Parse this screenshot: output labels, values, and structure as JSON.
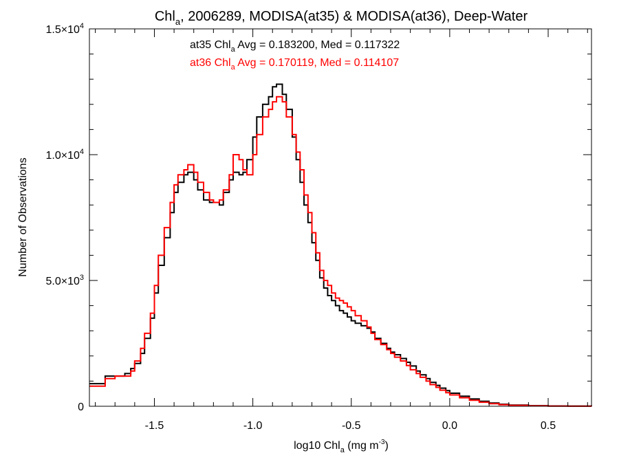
{
  "title_main": "Chl",
  "title_sub": "a",
  "title_rest": ", 2006289, MODISA(at35) & MODISA(at36), Deep-Water",
  "annotations": [
    {
      "pre": "at35 Chl",
      "sub": "a",
      "post": " Avg = 0.183200, Med = 0.117322",
      "color": "#000000"
    },
    {
      "pre": "at36 Chl",
      "sub": "a",
      "post": " Avg = 0.170119, Med = 0.114107",
      "color": "#ff0000"
    }
  ],
  "xlabel": {
    "pre": "log10 Chl",
    "sub": "a",
    "mid": " (mg m",
    "sup": "-3",
    "post": ")"
  },
  "ylabel": "Number of Observations",
  "chart_data": {
    "type": "line",
    "step": true,
    "title": "Chla, 2006289, MODISA(at35) & MODISA(at36), Deep-Water",
    "xlabel": "log10 Chla (mg m-3)",
    "ylabel": "Number of Observations",
    "xlim": [
      -1.83,
      0.72
    ],
    "ylim": [
      0,
      15000
    ],
    "x_ticks": [
      {
        "value": -1.5,
        "label": "-1.5"
      },
      {
        "value": -1.0,
        "label": "-1.0"
      },
      {
        "value": -0.5,
        "label": "-0.5"
      },
      {
        "value": 0.0,
        "label": "0.0"
      },
      {
        "value": 0.5,
        "label": "0.5"
      }
    ],
    "y_ticks": [
      {
        "value": 0,
        "base": "0",
        "exp": ""
      },
      {
        "value": 5000,
        "base": "5.0×10",
        "exp": "3"
      },
      {
        "value": 10000,
        "base": "1.0×10",
        "exp": "4"
      },
      {
        "value": 15000,
        "base": "1.5×10",
        "exp": "4"
      }
    ],
    "series": [
      {
        "name": "at35",
        "color": "#000000",
        "x": [
          -1.83,
          -1.75,
          -1.7,
          -1.65,
          -1.62,
          -1.6,
          -1.57,
          -1.55,
          -1.52,
          -1.5,
          -1.48,
          -1.45,
          -1.42,
          -1.4,
          -1.38,
          -1.35,
          -1.33,
          -1.3,
          -1.28,
          -1.25,
          -1.22,
          -1.2,
          -1.17,
          -1.15,
          -1.12,
          -1.1,
          -1.07,
          -1.05,
          -1.03,
          -1.0,
          -0.98,
          -0.95,
          -0.92,
          -0.9,
          -0.88,
          -0.85,
          -0.83,
          -0.8,
          -0.78,
          -0.76,
          -0.74,
          -0.72,
          -0.7,
          -0.68,
          -0.66,
          -0.64,
          -0.62,
          -0.6,
          -0.58,
          -0.56,
          -0.54,
          -0.52,
          -0.5,
          -0.48,
          -0.45,
          -0.42,
          -0.4,
          -0.38,
          -0.35,
          -0.32,
          -0.3,
          -0.28,
          -0.25,
          -0.22,
          -0.2,
          -0.17,
          -0.15,
          -0.12,
          -0.1,
          -0.07,
          -0.05,
          -0.02,
          0.0,
          0.05,
          0.1,
          0.15,
          0.2,
          0.25,
          0.3,
          0.4,
          0.5,
          0.6,
          0.72
        ],
        "values": [
          900,
          1200,
          1200,
          1300,
          1500,
          1700,
          2100,
          2700,
          3500,
          4500,
          5600,
          6700,
          7700,
          8500,
          8900,
          9200,
          9300,
          9000,
          8600,
          8200,
          8100,
          8100,
          8000,
          8500,
          9000,
          9300,
          9200,
          9300,
          9800,
          10700,
          11500,
          12000,
          12300,
          12700,
          12800,
          12400,
          11800,
          10700,
          9800,
          8900,
          8000,
          7300,
          6500,
          5800,
          5100,
          4700,
          4400,
          4200,
          4000,
          3800,
          3700,
          3550,
          3400,
          3300,
          3200,
          3100,
          2950,
          2700,
          2500,
          2300,
          2150,
          2050,
          1900,
          1750,
          1600,
          1400,
          1250,
          1100,
          950,
          830,
          720,
          620,
          520,
          400,
          290,
          200,
          130,
          80,
          50,
          25,
          10,
          5,
          0
        ]
      },
      {
        "name": "at36",
        "color": "#ff0000",
        "x": [
          -1.83,
          -1.75,
          -1.7,
          -1.65,
          -1.62,
          -1.6,
          -1.57,
          -1.55,
          -1.52,
          -1.5,
          -1.48,
          -1.45,
          -1.42,
          -1.4,
          -1.38,
          -1.35,
          -1.33,
          -1.3,
          -1.28,
          -1.25,
          -1.22,
          -1.2,
          -1.17,
          -1.15,
          -1.12,
          -1.1,
          -1.07,
          -1.05,
          -1.03,
          -1.0,
          -0.98,
          -0.95,
          -0.92,
          -0.9,
          -0.88,
          -0.85,
          -0.83,
          -0.8,
          -0.78,
          -0.76,
          -0.74,
          -0.72,
          -0.7,
          -0.68,
          -0.66,
          -0.64,
          -0.62,
          -0.6,
          -0.58,
          -0.56,
          -0.54,
          -0.52,
          -0.5,
          -0.48,
          -0.45,
          -0.42,
          -0.4,
          -0.38,
          -0.35,
          -0.32,
          -0.3,
          -0.28,
          -0.25,
          -0.22,
          -0.2,
          -0.17,
          -0.15,
          -0.12,
          -0.1,
          -0.07,
          -0.05,
          -0.02,
          0.0,
          0.05,
          0.1,
          0.15,
          0.2,
          0.25,
          0.3,
          0.4,
          0.5,
          0.6,
          0.72
        ],
        "values": [
          800,
          1100,
          1200,
          1200,
          1400,
          1800,
          2300,
          2900,
          3700,
          4800,
          6000,
          7100,
          8100,
          8800,
          9200,
          9400,
          9600,
          9300,
          8900,
          8500,
          8200,
          8100,
          8200,
          8600,
          9200,
          10000,
          9800,
          9400,
          9200,
          10000,
          10800,
          11500,
          11800,
          12100,
          12300,
          12100,
          11500,
          10800,
          10100,
          9400,
          8400,
          7700,
          6900,
          6100,
          5400,
          5000,
          4800,
          4500,
          4300,
          4200,
          4100,
          3950,
          3800,
          3600,
          3400,
          3150,
          2900,
          2650,
          2450,
          2250,
          2100,
          1950,
          1800,
          1620,
          1450,
          1300,
          1150,
          1000,
          860,
          750,
          640,
          540,
          450,
          340,
          240,
          160,
          100,
          60,
          35,
          15,
          6,
          3,
          0
        ]
      }
    ]
  }
}
